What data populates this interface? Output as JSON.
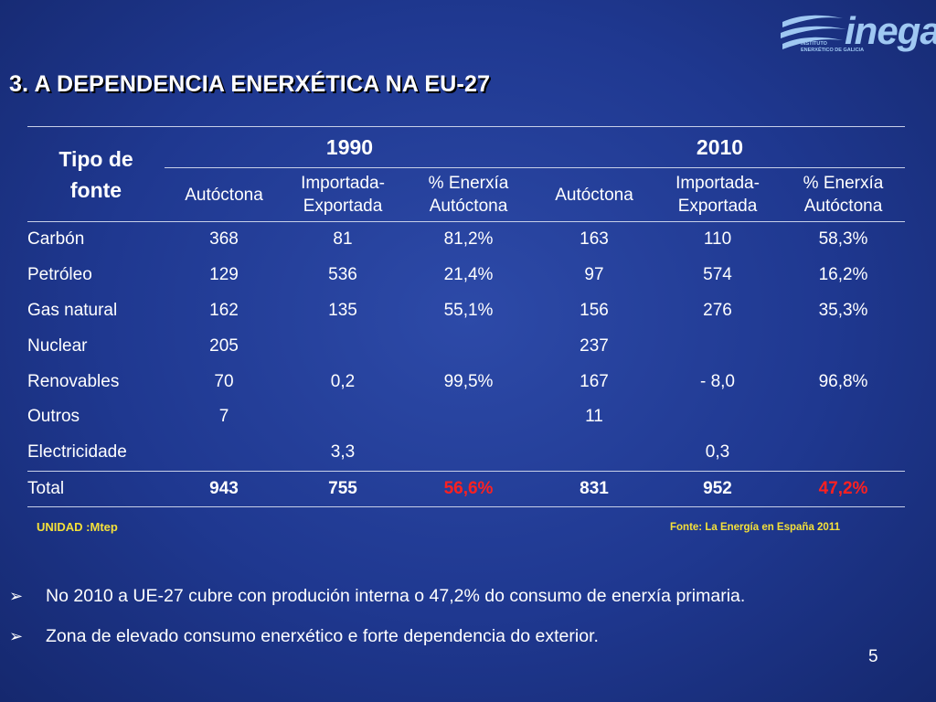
{
  "logo": {
    "word": "inega",
    "sub_line1": "INSTITUTO",
    "sub_line2": "ENERXÉTICO DE GALICIA"
  },
  "title": "3. A DEPENDENCIA ENERXÉTICA NA EU-27",
  "table": {
    "tipo_line1": "Tipo de",
    "tipo_line2": "fonte",
    "year1": "1990",
    "year2": "2010",
    "sub": {
      "aut": "Autóctona",
      "imp1": "Importada-",
      "imp2": "Exportada",
      "pct1": "% Enerxía",
      "pct2": "Autóctona"
    },
    "rows": [
      [
        "Carbón",
        "368",
        "81",
        "81,2%",
        "163",
        "110",
        "58,3%"
      ],
      [
        "Petróleo",
        "129",
        "536",
        "21,4%",
        "97",
        "574",
        "16,2%"
      ],
      [
        "Gas natural",
        "162",
        "135",
        "55,1%",
        "156",
        "276",
        "35,3%"
      ],
      [
        "Nuclear",
        "205",
        "",
        "",
        "237",
        "",
        ""
      ],
      [
        "Renovables",
        "70",
        "0,2",
        "99,5%",
        "167",
        "- 8,0",
        "96,8%"
      ],
      [
        "Outros",
        "7",
        "",
        "",
        "11",
        "",
        ""
      ],
      [
        "Electricidade",
        "",
        "3,3",
        "",
        "",
        "0,3",
        ""
      ],
      [
        "Total",
        "943",
        "755",
        "56,6%",
        "831",
        "952",
        "47,2%"
      ]
    ]
  },
  "unidad": "UNIDAD :Mtep",
  "fonte": "Fonte: La Energía  en España 2011",
  "bullets": [
    "No 2010 a UE-27 cubre con produción interna o 47,2% do consumo de enerxía primaria.",
    "Zona de elevado consumo enerxético e forte dependencia do exterior."
  ],
  "bullet_glyph": "➢",
  "page_number": "5",
  "colors": {
    "background": "#1f3890",
    "accent_yellow": "#f4e03a",
    "highlight_red": "#ff2020",
    "logo_blue": "#9fc8f2"
  }
}
